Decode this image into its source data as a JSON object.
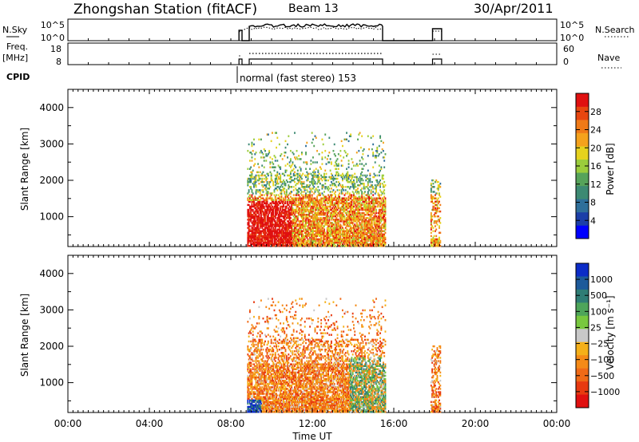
{
  "header": {
    "title": "Zhongshan Station (fitACF)",
    "beam": "Beam 13",
    "date": "30/Apr/2011"
  },
  "panels": {
    "nsky_label": "N.Sky",
    "nsearch_label": "N.Search",
    "freq_label_line1": "Freq.",
    "freq_label_line2": "[MHz]",
    "nave_label": "Nave",
    "cpid_label": "CPID",
    "cpid_text": "normal (fast stereo) 153",
    "nsky_ticks": [
      "10^5",
      "10^0"
    ],
    "nsearch_ticks": [
      "10^5",
      "10^0"
    ],
    "freq_ticks": [
      "18",
      "8"
    ],
    "nave_ticks": [
      "60",
      "0"
    ]
  },
  "colors": {
    "power": [
      "#0000ff",
      "#1c3fa8",
      "#2f6f9a",
      "#3d8a73",
      "#56a35a",
      "#9bcd3c",
      "#e6d21e",
      "#f5a21c",
      "#f07a17",
      "#e8460f",
      "#e01010"
    ],
    "velocity": [
      "#0c2cc8",
      "#1d5a9a",
      "#2f7d75",
      "#4ea55a",
      "#78c83e",
      "#c8c8c8",
      "#f5b019",
      "#f58a17",
      "#f06a16",
      "#e83a10",
      "#e01010"
    ]
  },
  "chart_data": [
    {
      "type": "heatmap",
      "name": "power",
      "ylabel": "Slant Range [km]",
      "y_ticks": [
        1000,
        2000,
        3000,
        4000
      ],
      "ylim": [
        180,
        4500
      ],
      "x_ticks": [
        "00:00",
        "04:00",
        "08:00",
        "12:00",
        "16:00",
        "20:00",
        "00:00"
      ],
      "xlim_hours": [
        0,
        24
      ],
      "colorbar": {
        "label": "Power [dB]",
        "ticks": [
          4,
          8,
          12,
          16,
          20,
          24,
          28
        ],
        "range": [
          0,
          32
        ]
      }
    },
    {
      "type": "heatmap",
      "name": "velocity",
      "ylabel": "Slant Range [km]",
      "y_ticks": [
        1000,
        2000,
        3000,
        4000
      ],
      "ylim": [
        180,
        4500
      ],
      "x_ticks": [
        "00:00",
        "04:00",
        "08:00",
        "12:00",
        "16:00",
        "20:00",
        "00:00"
      ],
      "xlim_hours": [
        0,
        24
      ],
      "xlabel": "Time UT",
      "colorbar": {
        "label": "Velocity [m s⁻¹]",
        "ticks": [
          "1000",
          "500",
          "100",
          "25",
          "−25",
          "−100",
          "−500",
          "−1000"
        ]
      }
    }
  ]
}
